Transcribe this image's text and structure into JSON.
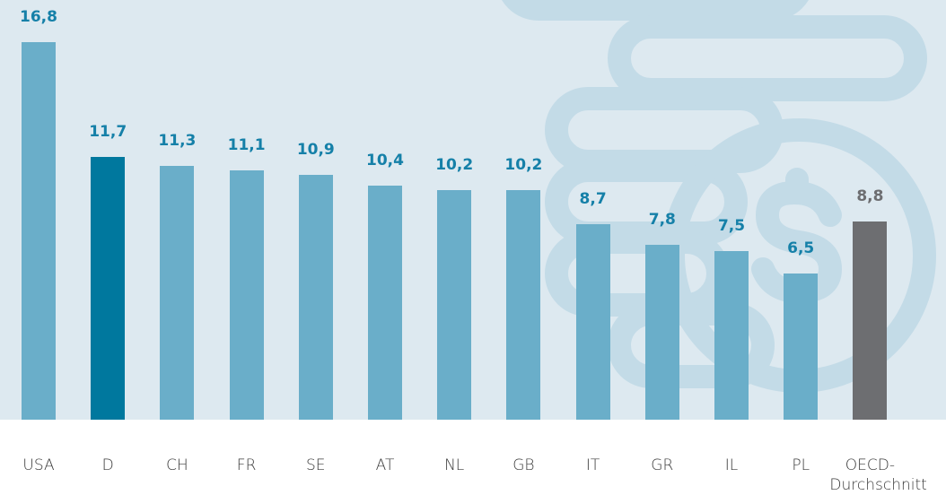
{
  "chart_data": {
    "type": "bar",
    "categories": [
      "USA",
      "D",
      "CH",
      "FR",
      "SE",
      "AT",
      "NL",
      "GB",
      "IT",
      "GR",
      "IL",
      "PL",
      "OECD-Durchschnitt"
    ],
    "values": [
      16.8,
      11.7,
      11.3,
      11.1,
      10.9,
      10.4,
      10.2,
      10.2,
      8.7,
      7.8,
      7.5,
      6.5,
      8.8
    ],
    "value_labels": [
      "16,8",
      "11,7",
      "11,3",
      "11,1",
      "10,9",
      "10,4",
      "10,2",
      "10,2",
      "8,7",
      "7,8",
      "7,5",
      "6,5",
      "8,8"
    ],
    "colors": [
      "#6aaec9",
      "#00789e",
      "#6aaec9",
      "#6aaec9",
      "#6aaec9",
      "#6aaec9",
      "#6aaec9",
      "#6aaec9",
      "#6aaec9",
      "#6aaec9",
      "#6aaec9",
      "#6aaec9",
      "#6d6e71"
    ],
    "value_label_colors": [
      "#1580a8",
      "#1580a8",
      "#1580a8",
      "#1580a8",
      "#1580a8",
      "#1580a8",
      "#1580a8",
      "#1580a8",
      "#1580a8",
      "#1580a8",
      "#1580a8",
      "#1580a8",
      "#6d6e71"
    ]
  }
}
